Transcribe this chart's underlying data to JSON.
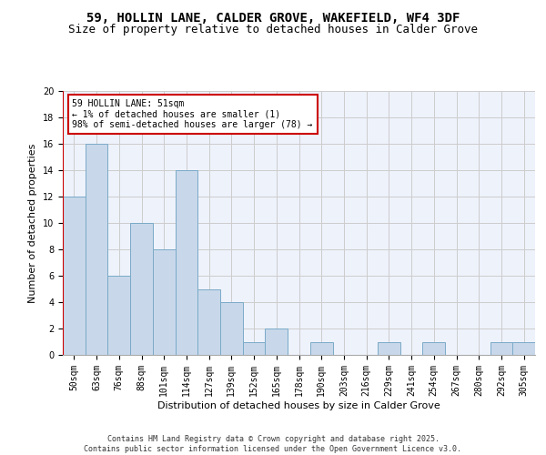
{
  "title1": "59, HOLLIN LANE, CALDER GROVE, WAKEFIELD, WF4 3DF",
  "title2": "Size of property relative to detached houses in Calder Grove",
  "xlabel": "Distribution of detached houses by size in Calder Grove",
  "ylabel": "Number of detached properties",
  "categories": [
    "50sqm",
    "63sqm",
    "76sqm",
    "88sqm",
    "101sqm",
    "114sqm",
    "127sqm",
    "139sqm",
    "152sqm",
    "165sqm",
    "178sqm",
    "190sqm",
    "203sqm",
    "216sqm",
    "229sqm",
    "241sqm",
    "254sqm",
    "267sqm",
    "280sqm",
    "292sqm",
    "305sqm"
  ],
  "values": [
    12,
    16,
    6,
    10,
    8,
    14,
    5,
    4,
    1,
    2,
    0,
    1,
    0,
    0,
    1,
    0,
    1,
    0,
    0,
    1,
    1
  ],
  "bar_color": "#c8d8ea",
  "bar_edge_color": "#7aaac8",
  "highlight_color": "#cc0000",
  "annotation_text": "59 HOLLIN LANE: 51sqm\n← 1% of detached houses are smaller (1)\n98% of semi-detached houses are larger (78) →",
  "annotation_box_color": "#ffffff",
  "annotation_box_edge_color": "#cc0000",
  "ylim": [
    0,
    20
  ],
  "yticks": [
    0,
    2,
    4,
    6,
    8,
    10,
    12,
    14,
    16,
    18,
    20
  ],
  "grid_color": "#cccccc",
  "background_color": "#eef2fb",
  "footer_text": "Contains HM Land Registry data © Crown copyright and database right 2025.\nContains public sector information licensed under the Open Government Licence v3.0.",
  "title_fontsize": 10,
  "subtitle_fontsize": 9,
  "tick_fontsize": 7,
  "ylabel_fontsize": 8,
  "xlabel_fontsize": 8,
  "annotation_fontsize": 7,
  "footer_fontsize": 6
}
